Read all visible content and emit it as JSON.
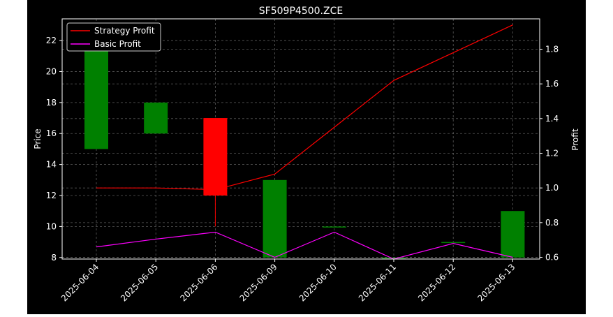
{
  "chart_data": {
    "type": "candlestick",
    "title": "SF509P4500.ZCE",
    "ylabel": "Price",
    "y2label": "Profit",
    "categories": [
      "2025-06-04",
      "2025-06-05",
      "2025-06-06",
      "2025-06-09",
      "2025-06-10",
      "2025-06-11",
      "2025-06-12",
      "2025-06-13"
    ],
    "ylim": [
      7.9,
      23.4
    ],
    "y2lim": [
      0.59,
      1.975
    ],
    "yticks": [
      8,
      10,
      12,
      14,
      16,
      18,
      20,
      22
    ],
    "y2ticks": [
      0.6,
      0.8,
      1.0,
      1.2,
      1.4,
      1.6,
      1.8
    ],
    "grid": true,
    "legend_position": "upper-left",
    "candles": [
      {
        "open": 15,
        "close": 23,
        "high": 23,
        "low": 15
      },
      {
        "open": 16,
        "close": 18,
        "high": 18,
        "low": 16
      },
      {
        "open": 17,
        "close": 12,
        "high": 17,
        "low": 10
      },
      {
        "open": 8,
        "close": 13,
        "high": 13,
        "low": 8
      },
      {
        "open": 10,
        "close": 10,
        "high": 10,
        "low": 10
      },
      {
        "open": 8,
        "close": 8,
        "high": 8,
        "low": 8
      },
      {
        "open": 9,
        "close": 9,
        "high": 9,
        "low": 9
      },
      {
        "open": 8,
        "close": 11,
        "high": 11,
        "low": 8
      }
    ],
    "series": [
      {
        "name": "Strategy Profit",
        "axis": "right",
        "color": "#ff0000",
        "values": [
          1.0,
          1.0,
          0.99,
          1.08,
          1.35,
          1.62,
          1.78,
          1.94
        ]
      },
      {
        "name": "Basic Profit",
        "axis": "right",
        "color": "#ff00ff",
        "values": [
          0.66,
          0.705,
          0.745,
          0.6,
          0.745,
          0.59,
          0.68,
          0.6
        ]
      }
    ],
    "colors": {
      "background": "#000000",
      "up": "#008000",
      "down": "#ff0000",
      "text": "#ffffff",
      "grid": "#808080"
    }
  }
}
